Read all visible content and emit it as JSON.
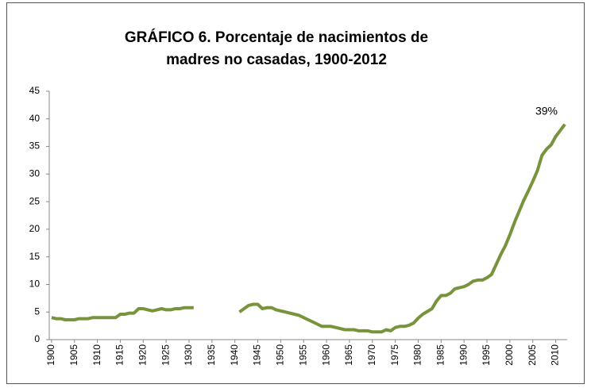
{
  "chart_data": {
    "type": "line",
    "title": "GRÁFICO 6.  Porcentaje de nacimientos de",
    "subtitle": "madres no casadas, 1900-2012",
    "annotation": "39%",
    "x": [
      1900,
      1901,
      1902,
      1903,
      1904,
      1905,
      1906,
      1907,
      1908,
      1909,
      1910,
      1911,
      1912,
      1913,
      1914,
      1915,
      1916,
      1917,
      1918,
      1919,
      1920,
      1921,
      1922,
      1923,
      1924,
      1925,
      1926,
      1927,
      1928,
      1929,
      1930,
      1931,
      1932,
      1933,
      1934,
      1935,
      1936,
      1937,
      1938,
      1939,
      1940,
      1941,
      1942,
      1943,
      1944,
      1945,
      1946,
      1947,
      1948,
      1949,
      1950,
      1951,
      1952,
      1953,
      1954,
      1955,
      1956,
      1957,
      1958,
      1959,
      1960,
      1961,
      1962,
      1963,
      1964,
      1965,
      1966,
      1967,
      1968,
      1969,
      1970,
      1971,
      1972,
      1973,
      1974,
      1975,
      1976,
      1977,
      1978,
      1979,
      1980,
      1981,
      1982,
      1983,
      1984,
      1985,
      1986,
      1987,
      1988,
      1989,
      1990,
      1991,
      1992,
      1993,
      1994,
      1995,
      1996,
      1997,
      1998,
      1999,
      2000,
      2001,
      2002,
      2003,
      2004,
      2005,
      2006,
      2007,
      2008,
      2009,
      2010,
      2011,
      2012
    ],
    "series": [
      {
        "name": "Porcentaje",
        "color": "#77933c",
        "values": [
          4.0,
          3.8,
          3.8,
          3.6,
          3.6,
          3.6,
          3.8,
          3.8,
          3.8,
          4.0,
          4.0,
          4.0,
          4.0,
          4.0,
          4.0,
          4.6,
          4.6,
          4.8,
          4.8,
          5.6,
          5.6,
          5.4,
          5.2,
          5.4,
          5.6,
          5.4,
          5.4,
          5.6,
          5.6,
          5.8,
          5.8,
          5.8,
          null,
          null,
          null,
          null,
          null,
          null,
          null,
          null,
          null,
          5.0,
          5.6,
          6.2,
          6.4,
          6.4,
          5.6,
          5.8,
          5.8,
          5.4,
          5.2,
          5.0,
          4.8,
          4.6,
          4.4,
          4.0,
          3.6,
          3.2,
          2.8,
          2.4,
          2.4,
          2.4,
          2.2,
          2.0,
          1.8,
          1.8,
          1.8,
          1.6,
          1.6,
          1.6,
          1.4,
          1.4,
          1.4,
          1.8,
          1.6,
          2.2,
          2.4,
          2.4,
          2.6,
          3.0,
          3.9,
          4.6,
          5.1,
          5.6,
          7.0,
          8.0,
          8.0,
          8.4,
          9.2,
          9.4,
          9.6,
          10.0,
          10.6,
          10.8,
          10.8,
          11.2,
          11.8,
          13.6,
          15.4,
          17.0,
          19.0,
          21.2,
          23.2,
          25.2,
          26.9,
          28.7,
          30.6,
          33.4,
          34.5,
          35.3,
          36.8,
          37.9,
          39.0
        ]
      }
    ],
    "xlim": [
      1899.5,
      2012.5
    ],
    "xticks": [
      1900,
      1905,
      1910,
      1915,
      1920,
      1925,
      1930,
      1935,
      1940,
      1945,
      1950,
      1955,
      1960,
      1965,
      1970,
      1975,
      1980,
      1985,
      1990,
      1995,
      2000,
      2005,
      2010
    ],
    "ylim": [
      0,
      45
    ],
    "yticks": [
      0,
      5,
      10,
      15,
      20,
      25,
      30,
      35,
      40,
      45
    ],
    "grid": false
  }
}
